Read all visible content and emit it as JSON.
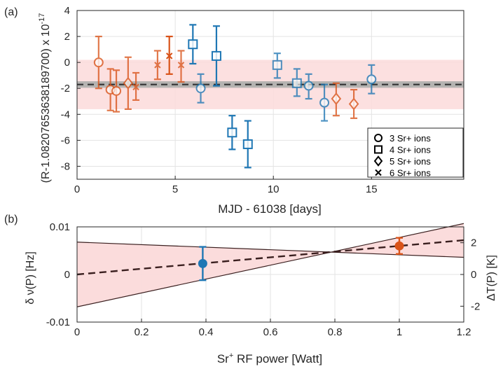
{
  "colors": {
    "blue": "#1f77b4",
    "orange": "#d95319",
    "band_fill": "#fbdada",
    "gray_band": "#a8aaa8",
    "dash_line": "#333333",
    "envelope_line": "#3a1f1f"
  },
  "chart_data": [
    {
      "type": "scatter",
      "panel_label": "(a)",
      "xlabel": "MJD - 61038 [days]",
      "ylabel": "(R-1.08207653638189700) x 10",
      "ylabel_exponent": "-17",
      "xlim": [
        0,
        19.7
      ],
      "ylim": [
        -9,
        4
      ],
      "xticks": [
        "0",
        "5",
        "10",
        "15"
      ],
      "yticks": [
        "4",
        "2",
        "0",
        "-2",
        "-4",
        "-6",
        "-8"
      ],
      "grid": true,
      "mean_line": -1.7,
      "gray_band": [
        -1.95,
        -1.45
      ],
      "red_band": [
        -3.6,
        0.2
      ],
      "legend_position": "bottom-right",
      "legend": [
        {
          "marker": "circle",
          "label": "3 Sr+ ions"
        },
        {
          "marker": "square",
          "label": "4 Sr+ ions"
        },
        {
          "marker": "diamond",
          "label": "5 Sr+ ions"
        },
        {
          "marker": "x",
          "label": "6 Sr+ ions"
        }
      ],
      "points": [
        {
          "x": 1.1,
          "y": 0.0,
          "lo": -2.0,
          "hi": 2.0,
          "marker": "circle",
          "color": "orange",
          "faint": true
        },
        {
          "x": 1.7,
          "y": -2.1,
          "lo": -3.7,
          "hi": -0.5,
          "marker": "circle",
          "color": "orange",
          "faint": true
        },
        {
          "x": 2.0,
          "y": -2.2,
          "lo": -3.8,
          "hi": -0.6,
          "marker": "circle",
          "color": "orange",
          "faint": true
        },
        {
          "x": 2.6,
          "y": -1.6,
          "lo": -3.6,
          "hi": 0.4,
          "marker": "diamond",
          "color": "orange",
          "faint": true
        },
        {
          "x": 3.0,
          "y": -1.9,
          "lo": -2.9,
          "hi": -0.8,
          "marker": "x",
          "color": "orange",
          "faint": true
        },
        {
          "x": 4.1,
          "y": -0.2,
          "lo": -1.3,
          "hi": 0.9,
          "marker": "x",
          "color": "orange",
          "faint": true
        },
        {
          "x": 4.7,
          "y": 0.5,
          "lo": -0.9,
          "hi": 2.0,
          "marker": "x",
          "color": "orange",
          "faint": false
        },
        {
          "x": 5.3,
          "y": -0.2,
          "lo": -1.5,
          "hi": 0.9,
          "marker": "x",
          "color": "orange",
          "faint": true
        },
        {
          "x": 5.9,
          "y": 1.4,
          "lo": -0.1,
          "hi": 2.9,
          "marker": "square",
          "color": "blue",
          "faint": false
        },
        {
          "x": 6.3,
          "y": -2.0,
          "lo": -3.1,
          "hi": -0.9,
          "marker": "circle",
          "color": "blue",
          "faint": true
        },
        {
          "x": 7.1,
          "y": 0.5,
          "lo": -1.8,
          "hi": 2.8,
          "marker": "square",
          "color": "blue",
          "faint": false
        },
        {
          "x": 7.9,
          "y": -5.4,
          "lo": -6.7,
          "hi": -4.1,
          "marker": "square",
          "color": "blue",
          "faint": false
        },
        {
          "x": 8.7,
          "y": -6.3,
          "lo": -8.1,
          "hi": -4.5,
          "marker": "square",
          "color": "blue",
          "faint": false
        },
        {
          "x": 10.2,
          "y": -0.2,
          "lo": -1.2,
          "hi": 0.7,
          "marker": "square",
          "color": "blue",
          "faint": true
        },
        {
          "x": 11.2,
          "y": -1.6,
          "lo": -2.6,
          "hi": -0.5,
          "marker": "square",
          "color": "blue",
          "faint": true
        },
        {
          "x": 11.8,
          "y": -1.8,
          "lo": -2.8,
          "hi": -0.9,
          "marker": "circle",
          "color": "blue",
          "faint": true
        },
        {
          "x": 12.6,
          "y": -3.1,
          "lo": -4.5,
          "hi": -1.7,
          "marker": "circle",
          "color": "blue",
          "faint": true
        },
        {
          "x": 13.2,
          "y": -2.8,
          "lo": -4.1,
          "hi": -1.6,
          "marker": "diamond",
          "color": "orange",
          "faint": true
        },
        {
          "x": 14.1,
          "y": -3.2,
          "lo": -4.3,
          "hi": -2.1,
          "marker": "diamond",
          "color": "orange",
          "faint": true
        },
        {
          "x": 15.0,
          "y": -1.3,
          "lo": -2.4,
          "hi": -0.2,
          "marker": "circle",
          "color": "blue",
          "faint": true
        }
      ]
    },
    {
      "type": "line",
      "panel_label": "(b)",
      "xlabel": "Sr",
      "xlabel_sup": "+",
      "xlabel_rest": " RF power [Watt]",
      "ylabel_left_prefix": "δ",
      "ylabel_left_rest": " ν(P) [Hz]",
      "ylabel_right": "ΔT(P) [K]",
      "xlim": [
        0,
        1.2
      ],
      "ylim_left": [
        -0.01,
        0.01
      ],
      "ylim_right": [
        -3,
        3
      ],
      "xticks": [
        "0",
        "0.2",
        "0.4",
        "0.6",
        "0.8",
        "1",
        "1.2"
      ],
      "yticks_left": [
        "0.01",
        "0",
        "-0.01"
      ],
      "yticks_right": [
        "2",
        "0",
        "-2"
      ],
      "fit_line": [
        [
          0,
          0.0
        ],
        [
          1.2,
          0.0072
        ]
      ],
      "envelope_upper": [
        [
          0,
          0.0068
        ],
        [
          1.2,
          0.0036
        ]
      ],
      "envelope_lower": [
        [
          0,
          -0.0068
        ],
        [
          1.2,
          0.0107
        ]
      ],
      "points": [
        {
          "x": 0.39,
          "y": 0.0023,
          "lo": -0.0012,
          "hi": 0.0058,
          "color": "blue"
        },
        {
          "x": 1.0,
          "y": 0.006,
          "lo": 0.0043,
          "hi": 0.0077,
          "color": "orange"
        }
      ]
    }
  ]
}
